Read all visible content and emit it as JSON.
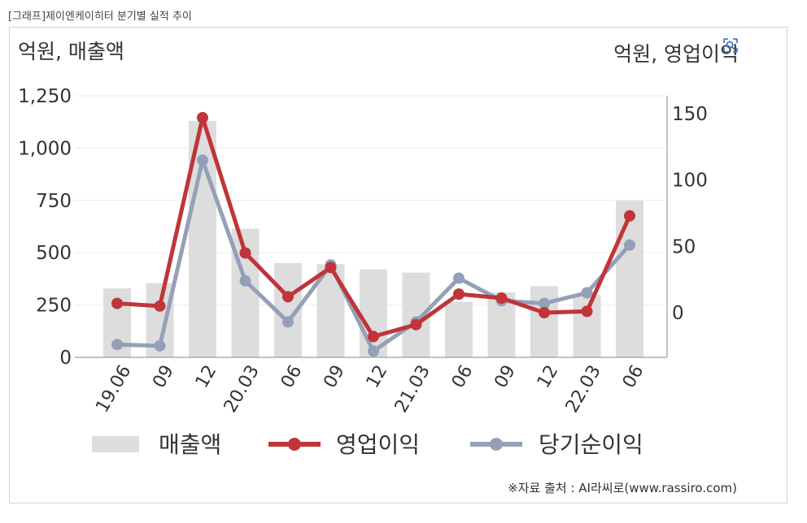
{
  "caption": "[그래프]제이엔케이히터 분기별 실적 추이",
  "source": "※자료 출처 : AI라씨로(www.rassiro.com)",
  "colors": {
    "revenue": "#dddddd",
    "operating_profit": "#c0343a",
    "net_income": "#94a0b8",
    "axis": "#9e9e9e",
    "grid": "#ebebeb",
    "text": "#333333"
  },
  "icons": {
    "zoom": "zoom-scan-icon"
  },
  "chart_data": {
    "type": "bar+line",
    "categories": [
      "19.06",
      "09",
      "12",
      "20.03",
      "06",
      "09",
      "12",
      "21.03",
      "06",
      "09",
      "12",
      "22.03",
      "06"
    ],
    "y_left": {
      "label": "억원, 매출액",
      "ylim": [
        0,
        1250
      ],
      "ticks": [
        0,
        250,
        500,
        750,
        1000,
        1250
      ],
      "tick_labels": [
        "0",
        "250",
        "500",
        "750",
        "1,000",
        "1,250"
      ]
    },
    "y_right": {
      "label": "억원, 영업이익",
      "ticks": [
        0,
        50,
        100,
        150
      ],
      "tick_labels": [
        "0",
        "50",
        "100",
        "150"
      ]
    },
    "grid": true,
    "legend_position": "bottom",
    "series": [
      {
        "name": "매출액",
        "type": "bar",
        "axis": "left",
        "values": [
          330,
          355,
          1130,
          615,
          450,
          445,
          420,
          405,
          265,
          310,
          340,
          300,
          750
        ]
      },
      {
        "name": "영업이익",
        "type": "line",
        "axis": "right",
        "values": [
          7,
          5,
          147,
          45,
          12,
          34,
          -18,
          -9,
          14,
          11,
          0,
          1,
          73
        ]
      },
      {
        "name": "당기순이익",
        "type": "line",
        "axis": "right",
        "values": [
          -24,
          -25,
          115,
          24,
          -7,
          36,
          -29,
          -7,
          26,
          9,
          7,
          15,
          51
        ]
      }
    ]
  }
}
